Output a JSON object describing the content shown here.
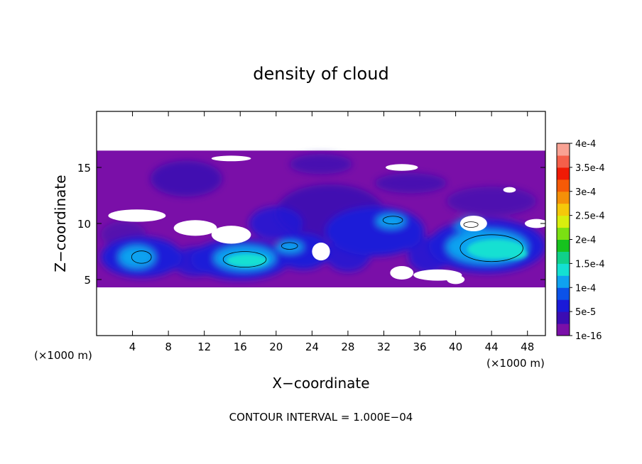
{
  "chart_data": {
    "type": "heatmap",
    "title": "density of cloud",
    "xlabel": "X−coordinate",
    "ylabel": "Z−coordinate",
    "x_unit_left": "(×1000 m)",
    "x_unit_right": "(×1000 m)",
    "xlim": [
      0,
      50
    ],
    "ylim": [
      0,
      20
    ],
    "x_ticks": [
      4,
      8,
      12,
      16,
      20,
      24,
      28,
      32,
      36,
      40,
      44,
      48
    ],
    "y_ticks": [
      5,
      10,
      15
    ],
    "colorbar": {
      "labels": [
        "1e-16",
        "5e-5",
        "1e-4",
        "1.5e-4",
        "2e-4",
        "2.5e-4",
        "3e-4",
        "3.5e-4",
        "4e-4"
      ],
      "colors": [
        "#7a0fa8",
        "#3b0cb3",
        "#1a1ad8",
        "#0b52e8",
        "#0fa2f0",
        "#14e0d2",
        "#10d08a",
        "#16c21e",
        "#7be012",
        "#d8ee0e",
        "#f5c80a",
        "#f59008",
        "#f55a07",
        "#f01a05",
        "#f55f4a",
        "#f9a294"
      ]
    },
    "cloud_band": {
      "z_min": 4.3,
      "z_max": 16.5
    },
    "features": [
      {
        "x": 16.5,
        "z": 6.8,
        "value": 0.00015,
        "label": "cyan core"
      },
      {
        "x": 44.0,
        "z": 7.8,
        "value": 0.00015,
        "label": "cyan core"
      },
      {
        "x": 5.0,
        "z": 7.0,
        "value": 0.0001,
        "label": "eddy"
      },
      {
        "x": 33.0,
        "z": 10.3,
        "value": 0.0001,
        "label": "eddy"
      }
    ],
    "contour_interval": "CONTOUR INTERVAL = 1.000E−04"
  }
}
